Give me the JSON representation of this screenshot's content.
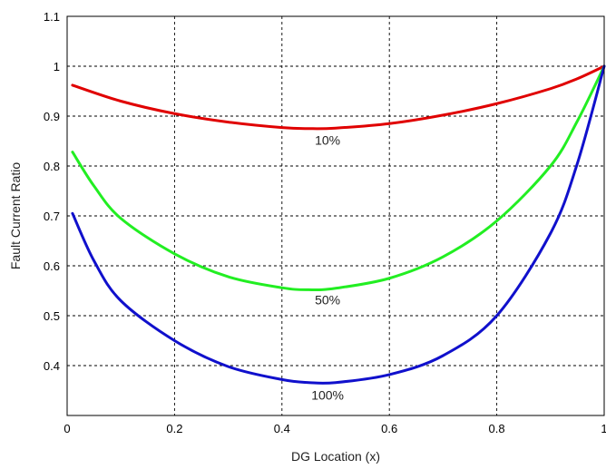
{
  "chart_data": {
    "type": "line",
    "title": "",
    "xlabel": "DG Location (x)",
    "ylabel": "Fault Current Ratio",
    "xlim": [
      0,
      1
    ],
    "ylim": [
      0.3,
      1.1
    ],
    "x_ticks": [
      "0",
      "0.2",
      "0.4",
      "0.6",
      "0.8",
      "1"
    ],
    "y_ticks": [
      "0.4",
      "0.5",
      "0.6",
      "0.7",
      "0.8",
      "0.9",
      "1",
      "1.1"
    ],
    "grid": true,
    "legend": "none",
    "series": [
      {
        "name": "10%",
        "color": "#e00000",
        "label_at": [
          0.485,
          0.843
        ],
        "x": [
          0.01,
          0.1,
          0.2,
          0.3,
          0.4,
          0.45,
          0.5,
          0.6,
          0.7,
          0.8,
          0.9,
          0.95,
          1.0
        ],
        "y": [
          0.962,
          0.93,
          0.905,
          0.888,
          0.877,
          0.875,
          0.876,
          0.885,
          0.902,
          0.925,
          0.955,
          0.975,
          1.0
        ]
      },
      {
        "name": "50%",
        "color": "#22ee22",
        "label_at": [
          0.485,
          0.523
        ],
        "x": [
          0.01,
          0.05,
          0.1,
          0.2,
          0.3,
          0.4,
          0.45,
          0.5,
          0.6,
          0.7,
          0.8,
          0.9,
          0.95,
          1.0
        ],
        "y": [
          0.828,
          0.76,
          0.695,
          0.624,
          0.578,
          0.556,
          0.552,
          0.555,
          0.575,
          0.618,
          0.69,
          0.8,
          0.89,
          1.0
        ]
      },
      {
        "name": "100%",
        "color": "#1010cc",
        "label_at": [
          0.485,
          0.332
        ],
        "x": [
          0.01,
          0.05,
          0.1,
          0.2,
          0.3,
          0.4,
          0.45,
          0.5,
          0.6,
          0.7,
          0.8,
          0.9,
          0.95,
          1.0
        ],
        "y": [
          0.705,
          0.61,
          0.53,
          0.45,
          0.398,
          0.372,
          0.366,
          0.366,
          0.382,
          0.42,
          0.5,
          0.665,
          0.805,
          1.0
        ]
      }
    ]
  }
}
